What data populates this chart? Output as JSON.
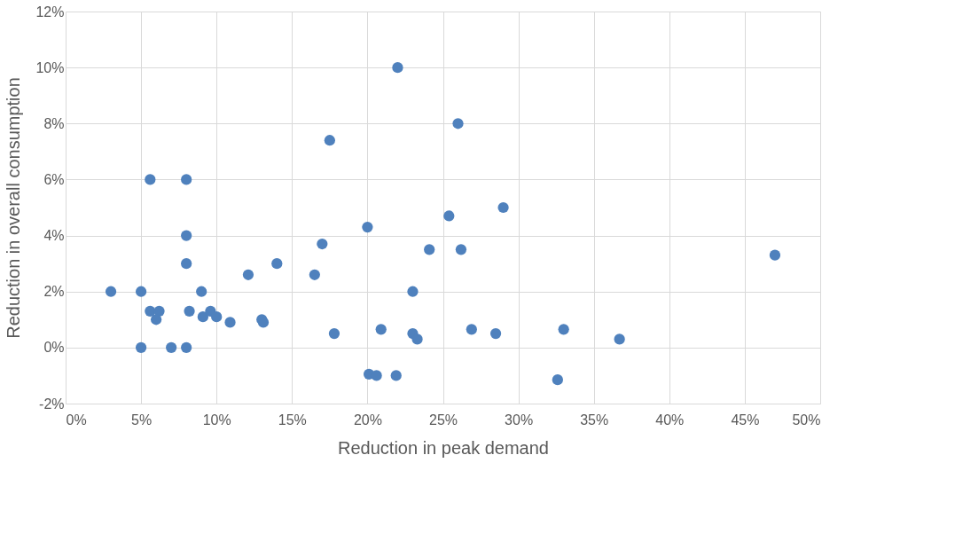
{
  "chart_data": {
    "type": "scatter",
    "xlabel": "Reduction in peak demand",
    "ylabel": "Reduction in overall consumption",
    "x": [
      3,
      5,
      5.6,
      8,
      8,
      8,
      5.6,
      6.2,
      6,
      5,
      7,
      8,
      9,
      8.2,
      9.1,
      9.6,
      10,
      10.9,
      12.1,
      13,
      13.1,
      14,
      16.5,
      17,
      17.5,
      17.8,
      20,
      20.1,
      20.6,
      20.9,
      21.9,
      22,
      23,
      23,
      23.3,
      24.1,
      25.4,
      26,
      26.2,
      26.9,
      28.5,
      29,
      32.6,
      33,
      36.7,
      47
    ],
    "series": [
      {
        "color": "#4f81bd",
        "values": [
          2,
          2,
          6,
          6,
          4,
          3,
          1.3,
          1.3,
          1,
          0,
          0,
          0,
          2,
          1.3,
          1.1,
          1.3,
          1.1,
          0.9,
          2.6,
          1,
          0.9,
          3,
          2.6,
          3.7,
          7.4,
          0.5,
          4.3,
          -0.95,
          -1,
          0.65,
          -1,
          10,
          2,
          0.5,
          0.3,
          3.5,
          4.7,
          8,
          3.5,
          0.65,
          0.5,
          5,
          -1.15,
          0.65,
          0.3,
          3.3
        ]
      }
    ],
    "xlim": [
      0,
      50
    ],
    "ylim": [
      -2,
      12
    ],
    "xticks": [
      {
        "value": 0,
        "label": "0%"
      },
      {
        "value": 5,
        "label": "5%"
      },
      {
        "value": 10,
        "label": "10%"
      },
      {
        "value": 15,
        "label": "15%"
      },
      {
        "value": 20,
        "label": "20%"
      },
      {
        "value": 25,
        "label": "25%"
      },
      {
        "value": 30,
        "label": "30%"
      },
      {
        "value": 35,
        "label": "35%"
      },
      {
        "value": 40,
        "label": "40%"
      },
      {
        "value": 45,
        "label": "45%"
      },
      {
        "value": 50,
        "label": "50%"
      }
    ],
    "yticks": [
      {
        "value": -2,
        "label": "-2%"
      },
      {
        "value": 0,
        "label": "0%"
      },
      {
        "value": 2,
        "label": "2%"
      },
      {
        "value": 4,
        "label": "4%"
      },
      {
        "value": 6,
        "label": "6%"
      },
      {
        "value": 8,
        "label": "8%"
      },
      {
        "value": 10,
        "label": "10%"
      },
      {
        "value": 12,
        "label": "12%"
      }
    ],
    "grid": true,
    "marker": "circle",
    "legend": false
  }
}
